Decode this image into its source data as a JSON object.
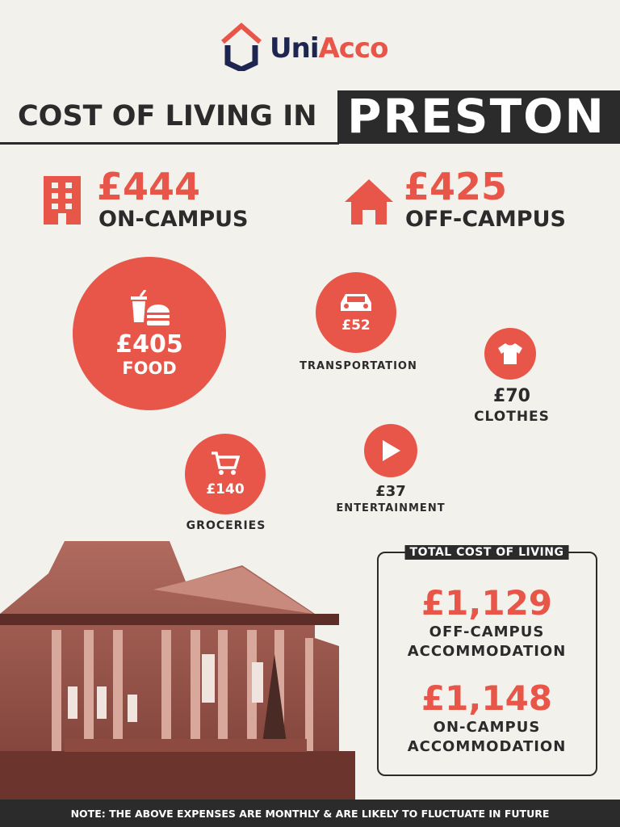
{
  "brand": {
    "logo_text_a": "Uni",
    "logo_text_b": "Acco",
    "colors": {
      "accent": "#e8564a",
      "navy": "#1d2550",
      "dark": "#2b2b2b"
    }
  },
  "title": {
    "prefix": "COST OF LIVING IN",
    "city": "PRESTON"
  },
  "accommodation": [
    {
      "amount": "£444",
      "label": "ON-CAMPUS",
      "icon": "building-icon"
    },
    {
      "amount": "£425",
      "label": "OFF-CAMPUS",
      "icon": "house-icon"
    }
  ],
  "expenses": {
    "food": {
      "amount": "£405",
      "label": "FOOD",
      "icon": "fast-food-icon"
    },
    "transportation": {
      "amount": "£52",
      "label": "TRANSPORTATION",
      "icon": "car-icon"
    },
    "clothes": {
      "amount": "£70",
      "label": "CLOTHES",
      "icon": "tshirt-icon"
    },
    "groceries": {
      "amount": "£140",
      "label": "GROCERIES",
      "icon": "shopping-cart-icon"
    },
    "entertainment": {
      "amount": "£37",
      "label": "ENTERTAINMENT",
      "icon": "play-icon"
    }
  },
  "total": {
    "heading": "TOTAL COST OF LIVING",
    "off_amount": "£1,129",
    "off_label1": "OFF-CAMPUS",
    "off_label2": "ACCOMMODATION",
    "on_amount": "£1,148",
    "on_label1": "ON-CAMPUS",
    "on_label2": "ACCOMMODATION"
  },
  "footer": {
    "note": "NOTE: THE ABOVE EXPENSES ARE MONTHLY & ARE LIKELY TO FLUCTUATE IN FUTURE"
  }
}
